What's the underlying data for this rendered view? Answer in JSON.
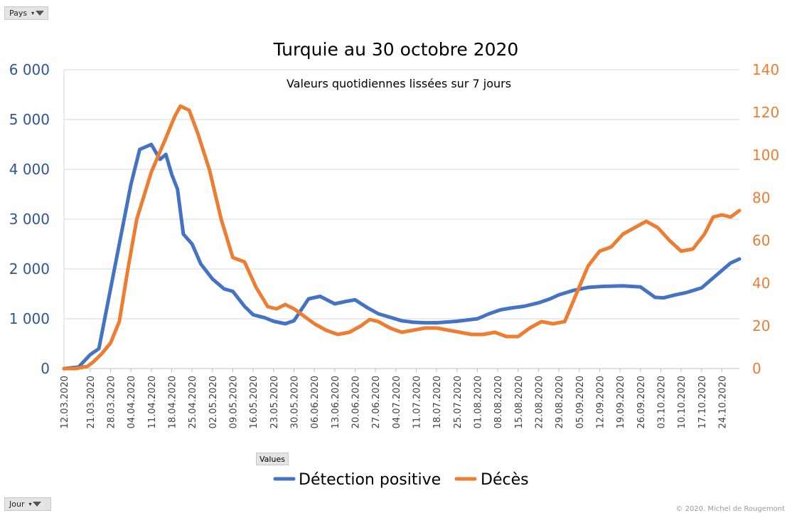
{
  "filters": {
    "pays_label": "Pays",
    "jour_label": "Jour",
    "values_label": "Values"
  },
  "copyright": "© 2020.  Michel de Rougemont",
  "chart_data": {
    "type": "line",
    "title": "Turquie au 30 octobre 2020",
    "subtitle": "Valeurs quotidiennes lissées sur 7 jours",
    "colors": {
      "detections": "#4472c4",
      "deces": "#ed7d31"
    },
    "y_left": {
      "min": 0,
      "max": 6000,
      "ticks": [
        "0",
        "1 000",
        "2 000",
        "3 000",
        "4 000",
        "5 000",
        "6 000"
      ]
    },
    "y_right": {
      "min": 0,
      "max": 140,
      "ticks": [
        "0",
        "20",
        "40",
        "60",
        "80",
        "100",
        "120",
        "140"
      ]
    },
    "x_tick_labels": [
      "12.03.2020",
      "21.03.2020",
      "28.03.2020",
      "04.04.2020",
      "11.04.2020",
      "18.04.2020",
      "25.04.2020",
      "02.05.2020",
      "09.05.2020",
      "16.05.2020",
      "23.05.2020",
      "30.05.2020",
      "06.06.2020",
      "13.06.2020",
      "20.06.2020",
      "27.06.2020",
      "04.07.2020",
      "11.07.2020",
      "18.07.2020",
      "25.07.2020",
      "01.08.2020",
      "08.08.2020",
      "15.08.2020",
      "22.08.2020",
      "29.08.2020",
      "05.09.2020",
      "12.09.2020",
      "19.09.2020",
      "26.09.2020",
      "03.10.2020",
      "10.10.2020",
      "17.10.2020",
      "24.10.2020"
    ],
    "x_tick_days": [
      0,
      9,
      16,
      23,
      30,
      37,
      44,
      51,
      58,
      65,
      72,
      79,
      86,
      93,
      100,
      107,
      114,
      121,
      128,
      135,
      142,
      149,
      156,
      163,
      170,
      177,
      184,
      191,
      198,
      205,
      212,
      219,
      226
    ],
    "x_range_days": [
      0,
      232
    ],
    "legend": [
      "Détection positive",
      "Décès"
    ],
    "series": [
      {
        "name": "Détection positive",
        "axis": "left",
        "x_days": [
          0,
          5,
          9,
          12,
          15,
          19,
          23,
          26,
          30,
          33,
          35,
          37,
          39,
          41,
          44,
          47,
          51,
          55,
          58,
          62,
          65,
          69,
          72,
          76,
          79,
          84,
          88,
          93,
          97,
          100,
          104,
          108,
          112,
          116,
          120,
          124,
          128,
          135,
          142,
          146,
          150,
          154,
          158,
          163,
          167,
          170,
          175,
          180,
          185,
          192,
          198,
          203,
          206,
          210,
          214,
          219,
          224,
          229,
          232
        ],
        "values": [
          0,
          30,
          280,
          400,
          1300,
          2500,
          3700,
          4400,
          4500,
          4200,
          4300,
          3900,
          3600,
          2700,
          2500,
          2100,
          1800,
          1600,
          1550,
          1250,
          1080,
          1020,
          950,
          900,
          960,
          1400,
          1450,
          1300,
          1350,
          1380,
          1230,
          1100,
          1030,
          960,
          930,
          920,
          920,
          950,
          1000,
          1100,
          1180,
          1220,
          1250,
          1320,
          1400,
          1480,
          1570,
          1630,
          1650,
          1660,
          1640,
          1430,
          1420,
          1480,
          1530,
          1620,
          1870,
          2120,
          2200
        ]
      },
      {
        "name": "Décès",
        "axis": "right",
        "x_days": [
          0,
          4,
          8,
          10,
          13,
          16,
          19,
          22,
          25,
          30,
          35,
          38,
          40,
          43,
          46,
          50,
          54,
          58,
          62,
          66,
          70,
          73,
          76,
          79,
          82,
          86,
          90,
          94,
          98,
          102,
          105,
          108,
          112,
          116,
          120,
          124,
          128,
          132,
          136,
          140,
          144,
          148,
          152,
          156,
          160,
          164,
          168,
          172,
          176,
          180,
          184,
          188,
          192,
          196,
          200,
          204,
          208,
          212,
          216,
          220,
          223,
          226,
          229,
          232
        ],
        "values": [
          0,
          0,
          1,
          3,
          7,
          12,
          22,
          47,
          70,
          92,
          108,
          118,
          123,
          121,
          110,
          93,
          70,
          52,
          50,
          38,
          29,
          28,
          30,
          28,
          25,
          21,
          18,
          16,
          17,
          20,
          23,
          22,
          19,
          17,
          18,
          19,
          19,
          18,
          17,
          16,
          16,
          17,
          15,
          15,
          19,
          22,
          21,
          22,
          35,
          48,
          55,
          57,
          63,
          66,
          69,
          66,
          60,
          55,
          56,
          63,
          71,
          72,
          71,
          74
        ]
      }
    ]
  }
}
